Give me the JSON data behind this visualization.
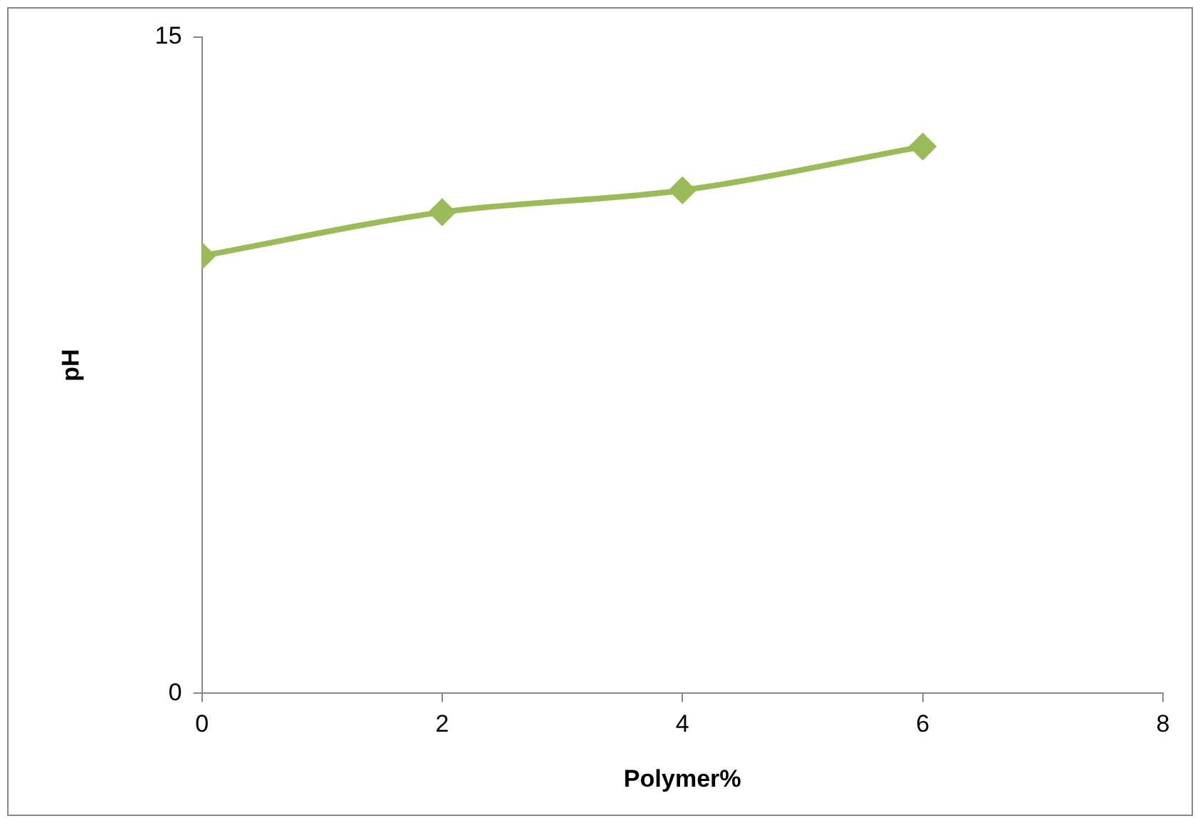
{
  "chart_data": {
    "type": "line",
    "xlabel": "Polymer%",
    "ylabel": "pH",
    "x": [
      0,
      2,
      4,
      6
    ],
    "series": [
      {
        "color": "#9bbb59",
        "values": [
          10,
          11,
          11.5,
          12.5
        ]
      }
    ],
    "xlim": [
      0,
      8
    ],
    "xticks": [
      0,
      2,
      4,
      6,
      8
    ],
    "ylim": [
      0,
      15
    ],
    "yticks": [
      0,
      15
    ],
    "grid": false,
    "legend": false,
    "marker": "diamond",
    "line_style": "solid"
  }
}
